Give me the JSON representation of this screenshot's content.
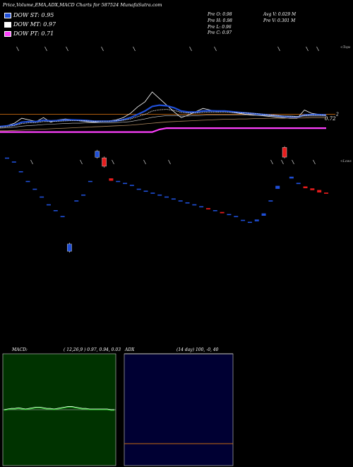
{
  "header": {
    "title": "Price,Volume,EMA,ADX,MACD Charts for 587524  MunafaSutra.com",
    "legend": [
      {
        "label": "DOW ST: 0.95",
        "color": "#1f4fd8"
      },
      {
        "label": "DOW MT: 0.97",
        "color": "#ffffff"
      },
      {
        "label": "DOW PT: 0.71",
        "color": "#ff40ff"
      }
    ],
    "ohlc": {
      "open": "Pre  O: 0.98",
      "high": "Pre  H: 0.98",
      "low": "Pre  L: 0.96",
      "close": "Pre  C: 0.97",
      "avg_vol": "Avg V: 0.029 M",
      "pre_vol": "Pre  V: 0.301 M"
    }
  },
  "colors": {
    "up": "#1f4fd8",
    "down": "#e81c1c",
    "baseline": "#c66a10",
    "macd_bg": "#003300",
    "adx_bg": "#000033",
    "pt_line": "#ff40ff"
  },
  "chart_data": [
    {
      "type": "line",
      "panel": "price-ema",
      "title": "",
      "side_label_top": "<Tops",
      "baseline_label": "2",
      "pt_label": "0.72",
      "x": [
        0,
        1,
        2,
        3,
        4,
        5,
        6,
        7,
        8,
        9,
        10,
        11,
        12,
        13,
        14,
        15,
        16,
        17,
        18,
        19,
        20,
        21,
        22,
        23,
        24,
        25,
        26,
        27,
        28,
        29,
        30,
        31,
        32,
        33,
        34,
        35,
        36,
        37,
        38,
        39,
        40,
        41,
        42,
        43,
        44,
        45
      ],
      "series": [
        {
          "key": "close",
          "color": "#ffffff",
          "values": [
            0.35,
            0.38,
            0.45,
            0.6,
            0.55,
            0.5,
            0.62,
            0.48,
            0.55,
            0.58,
            0.56,
            0.52,
            0.5,
            0.48,
            0.5,
            0.52,
            0.55,
            0.62,
            0.75,
            0.95,
            1.1,
            1.4,
            1.2,
            1.0,
            0.8,
            0.62,
            0.7,
            0.8,
            0.9,
            0.85,
            0.8,
            0.82,
            0.78,
            0.75,
            0.72,
            0.7,
            0.68,
            0.66,
            0.64,
            0.62,
            0.6,
            0.6,
            0.85,
            0.75,
            0.72,
            0.7
          ]
        },
        {
          "key": "ema_short",
          "color": "#1f4fd8",
          "values": [
            0.35,
            0.37,
            0.4,
            0.48,
            0.5,
            0.5,
            0.54,
            0.52,
            0.53,
            0.55,
            0.55,
            0.54,
            0.53,
            0.51,
            0.51,
            0.51,
            0.52,
            0.56,
            0.62,
            0.72,
            0.82,
            0.96,
            1.0,
            0.98,
            0.92,
            0.82,
            0.79,
            0.79,
            0.82,
            0.83,
            0.82,
            0.82,
            0.8,
            0.78,
            0.76,
            0.74,
            0.72,
            0.7,
            0.68,
            0.66,
            0.64,
            0.63,
            0.7,
            0.71,
            0.71,
            0.7
          ]
        },
        {
          "key": "ema_mid",
          "color": "#ffffff",
          "values": [
            0.33,
            0.35,
            0.38,
            0.44,
            0.46,
            0.47,
            0.5,
            0.5,
            0.51,
            0.52,
            0.53,
            0.53,
            0.52,
            0.51,
            0.51,
            0.51,
            0.52,
            0.54,
            0.58,
            0.65,
            0.72,
            0.82,
            0.86,
            0.87,
            0.84,
            0.78,
            0.76,
            0.76,
            0.78,
            0.79,
            0.79,
            0.79,
            0.78,
            0.77,
            0.76,
            0.75,
            0.73,
            0.71,
            0.69,
            0.67,
            0.66,
            0.65,
            0.69,
            0.7,
            0.7,
            0.7
          ]
        },
        {
          "key": "ema_long",
          "color": "#d8d8d8",
          "values": [
            0.3,
            0.31,
            0.33,
            0.36,
            0.38,
            0.39,
            0.41,
            0.42,
            0.43,
            0.44,
            0.45,
            0.45,
            0.46,
            0.46,
            0.46,
            0.46,
            0.47,
            0.48,
            0.5,
            0.54,
            0.58,
            0.63,
            0.66,
            0.68,
            0.68,
            0.67,
            0.67,
            0.68,
            0.69,
            0.7,
            0.7,
            0.7,
            0.7,
            0.7,
            0.7,
            0.69,
            0.69,
            0.68,
            0.68,
            0.67,
            0.67,
            0.66,
            0.67,
            0.67,
            0.67,
            0.67
          ]
        },
        {
          "key": "ema_xlong",
          "color": "#b08a60",
          "values": [
            0.22,
            0.22,
            0.23,
            0.24,
            0.25,
            0.26,
            0.27,
            0.28,
            0.29,
            0.3,
            0.31,
            0.32,
            0.33,
            0.34,
            0.35,
            0.36,
            0.37,
            0.38,
            0.39,
            0.41,
            0.43,
            0.45,
            0.47,
            0.49,
            0.5,
            0.51,
            0.52,
            0.53,
            0.54,
            0.55,
            0.56,
            0.57,
            0.57,
            0.58,
            0.58,
            0.59,
            0.59,
            0.6,
            0.6,
            0.6,
            0.61,
            0.61,
            0.61,
            0.62,
            0.62,
            0.62
          ]
        },
        {
          "key": "pt",
          "color": "#ff40ff",
          "values": [
            0.18,
            0.18,
            0.18,
            0.18,
            0.18,
            0.18,
            0.18,
            0.18,
            0.18,
            0.18,
            0.18,
            0.18,
            0.18,
            0.18,
            0.18,
            0.18,
            0.18,
            0.18,
            0.18,
            0.18,
            0.18,
            0.18,
            0.26,
            0.3,
            0.3,
            0.3,
            0.3,
            0.3,
            0.3,
            0.3,
            0.3,
            0.3,
            0.3,
            0.3,
            0.3,
            0.3,
            0.3,
            0.3,
            0.3,
            0.3,
            0.3,
            0.3,
            0.3,
            0.3,
            0.3,
            0.3
          ]
        }
      ],
      "baseline": 0.72,
      "top_markers": [
        5,
        13,
        19,
        29,
        38,
        54,
        61,
        79,
        87,
        90
      ]
    },
    {
      "type": "bar",
      "panel": "volume",
      "side_label": "<Lows",
      "low_markers": [
        9,
        23,
        32,
        41,
        48,
        77,
        80,
        83,
        89
      ],
      "x": [
        0,
        1,
        2,
        3,
        4,
        5,
        6,
        7,
        8,
        9,
        10,
        11,
        12,
        13,
        14,
        15,
        16,
        17,
        18,
        19,
        20,
        21,
        22,
        23,
        24,
        25,
        26,
        27,
        28,
        29,
        30,
        31,
        32,
        33,
        34,
        35,
        36,
        37,
        38,
        39,
        40,
        41,
        42,
        43,
        44,
        45,
        46
      ],
      "values": [
        0.82,
        0.8,
        0.75,
        0.7,
        0.66,
        0.62,
        0.58,
        0.55,
        0.52,
        0.36,
        0.6,
        0.63,
        0.7,
        0.84,
        0.8,
        0.71,
        0.7,
        0.69,
        0.68,
        0.66,
        0.65,
        0.64,
        0.63,
        0.62,
        0.61,
        0.6,
        0.59,
        0.58,
        0.57,
        0.56,
        0.55,
        0.54,
        0.53,
        0.52,
        0.5,
        0.49,
        0.5,
        0.53,
        0.6,
        0.67,
        0.85,
        0.72,
        0.69,
        0.67,
        0.66,
        0.65,
        0.64
      ],
      "size": [
        0,
        0,
        0,
        0,
        0,
        0,
        0,
        0,
        0,
        0.12,
        0,
        0,
        0,
        0.1,
        0.14,
        0.04,
        0,
        0,
        0,
        0,
        0,
        0,
        0,
        0,
        0,
        0,
        0,
        0,
        0,
        0.02,
        0,
        0.02,
        0,
        0,
        0,
        0,
        0.03,
        0.04,
        0.02,
        0.05,
        0.16,
        0.03,
        0.02,
        0.03,
        0.03,
        0.04,
        0.02
      ],
      "dir": [
        "u",
        "u",
        "u",
        "u",
        "u",
        "u",
        "u",
        "u",
        "u",
        "u",
        "u",
        "u",
        "u",
        "u",
        "d",
        "d",
        "u",
        "u",
        "u",
        "u",
        "u",
        "u",
        "u",
        "u",
        "u",
        "u",
        "u",
        "u",
        "d",
        "d",
        "d",
        "d",
        "u",
        "u",
        "u",
        "d",
        "u",
        "u",
        "u",
        "u",
        "d",
        "u",
        "u",
        "d",
        "d",
        "d",
        "d"
      ]
    },
    {
      "type": "line",
      "panel": "macd",
      "label": "MACD:",
      "params": "( 12,26,9 ) 0.97, 0.94, 0.03",
      "values": [
        0.5,
        0.51,
        0.52,
        0.52,
        0.53,
        0.52,
        0.51,
        0.52,
        0.53,
        0.54,
        0.54,
        0.53,
        0.52,
        0.52,
        0.51,
        0.52,
        0.53,
        0.54,
        0.55,
        0.55,
        0.54,
        0.53,
        0.52,
        0.52,
        0.51,
        0.51,
        0.51,
        0.51,
        0.51,
        0.51,
        0.5,
        0.5
      ]
    },
    {
      "type": "line",
      "panel": "adx",
      "label": "ADX",
      "params": "(14  day) 100, -0,  40",
      "values": [
        0.4,
        0.4
      ]
    }
  ]
}
